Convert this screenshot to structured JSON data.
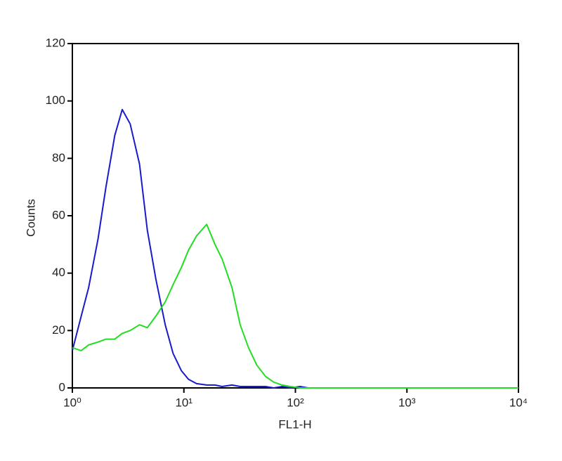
{
  "chart_data": {
    "type": "line",
    "x_label": "FL1-H",
    "y_label": "Counts",
    "x": [
      1,
      1.2,
      1.4,
      1.7,
      2,
      2.4,
      2.8,
      3.3,
      4,
      4.7,
      5.6,
      6.8,
      8,
      9.5,
      11,
      13,
      16,
      19,
      22,
      27,
      32,
      38,
      45,
      54,
      64,
      76,
      90,
      110,
      130,
      200,
      500,
      1000,
      2000,
      5000,
      10000
    ],
    "series": [
      {
        "color": "#1a1acc",
        "values": [
          13,
          25,
          35,
          52,
          70,
          88,
          97,
          92,
          78,
          55,
          38,
          22,
          12,
          6,
          3,
          1.5,
          1,
          1,
          0.5,
          1,
          0.5,
          0.5,
          0.5,
          0.5,
          0,
          0.5,
          0,
          0.5,
          0,
          0,
          0,
          0,
          0,
          0,
          0
        ]
      },
      {
        "color": "#22dd22",
        "values": [
          14,
          13,
          15,
          16,
          17,
          17,
          19,
          20,
          22,
          21,
          25,
          30,
          36,
          42,
          48,
          53,
          57,
          50,
          45,
          35,
          22,
          14,
          8,
          4,
          2,
          1,
          0.5,
          0,
          0,
          0,
          0,
          0,
          0,
          0,
          0
        ]
      }
    ],
    "xscale": "log",
    "xlim": [
      1,
      10000
    ],
    "xticks": [
      {
        "value": 1,
        "label": "10⁰"
      },
      {
        "value": 10,
        "label": "10¹"
      },
      {
        "value": 100,
        "label": "10²"
      },
      {
        "value": 1000,
        "label": "10³"
      },
      {
        "value": 10000,
        "label": "10⁴"
      }
    ],
    "ylim": [
      0,
      120
    ],
    "yticks": [
      0,
      20,
      40,
      60,
      80,
      100,
      120
    ]
  }
}
